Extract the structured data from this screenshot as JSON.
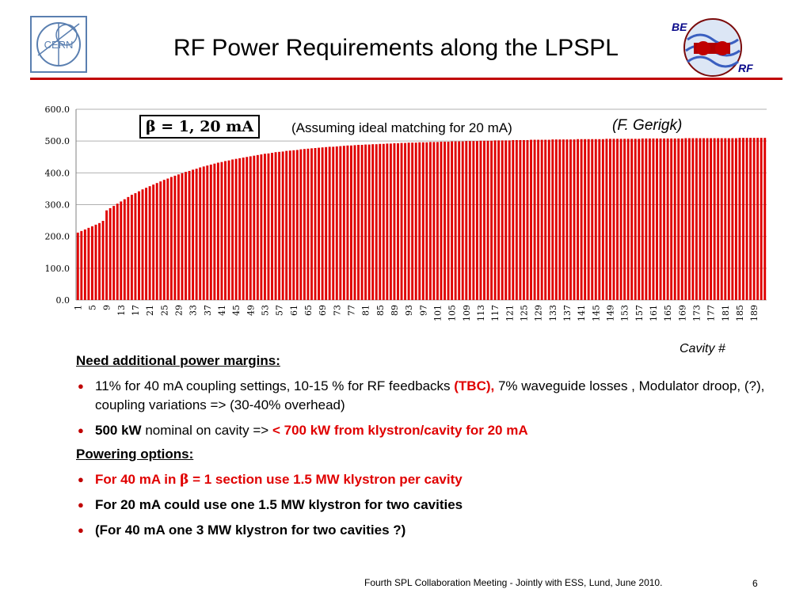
{
  "slide": {
    "title": "RF Power Requirements along the LPSPL",
    "logo_left": "CERN",
    "logo_right_top": "BE",
    "logo_right_bottom": "RF",
    "accent_color": "#c00000"
  },
  "chart_data": {
    "type": "bar",
    "color": "#e00000",
    "y_ticks": [
      "0.0",
      "100.0",
      "200.0",
      "300.0",
      "400.0",
      "500.0",
      "600.0"
    ],
    "ylim": [
      0,
      600
    ],
    "grid": true,
    "xlabel": "Cavity #",
    "x_tick_labels": [
      "1",
      "5",
      "9",
      "13",
      "17",
      "21",
      "25",
      "29",
      "33",
      "37",
      "41",
      "45",
      "49",
      "53",
      "57",
      "61",
      "65",
      "69",
      "73",
      "77",
      "81",
      "85",
      "89",
      "93",
      "97",
      "101",
      "105",
      "109",
      "113",
      "117",
      "121",
      "125",
      "129",
      "133",
      "137",
      "141",
      "145",
      "149",
      "153",
      "157",
      "161",
      "165",
      "169",
      "173",
      "177",
      "181",
      "185",
      "189"
    ],
    "categories": [
      1,
      2,
      3,
      4,
      5,
      6,
      7,
      8,
      9,
      10,
      11,
      12,
      13,
      14,
      15,
      16,
      17,
      18,
      19,
      20,
      21,
      22,
      23,
      24,
      25,
      26,
      27,
      28,
      29,
      30,
      31,
      32,
      33,
      34,
      35,
      36,
      37,
      38,
      39,
      40,
      41,
      42,
      43,
      44,
      45,
      46,
      47,
      48,
      49,
      50,
      51,
      52,
      53,
      54,
      55,
      56,
      57,
      58,
      59,
      60,
      61,
      62,
      63,
      64,
      65,
      66,
      67,
      68,
      69,
      70,
      71,
      72,
      73,
      74,
      75,
      76,
      77,
      78,
      79,
      80,
      81,
      82,
      83,
      84,
      85,
      86,
      87,
      88,
      89,
      90,
      91,
      92,
      93,
      94,
      95,
      96,
      97,
      98,
      99,
      100,
      101,
      102,
      103,
      104,
      105,
      106,
      107,
      108,
      109,
      110,
      111,
      112,
      113,
      114,
      115,
      116,
      117,
      118,
      119,
      120,
      121,
      122,
      123,
      124,
      125,
      126,
      127,
      128,
      129,
      130,
      131,
      132,
      133,
      134,
      135,
      136,
      137,
      138,
      139,
      140,
      141,
      142,
      143,
      144,
      145,
      146,
      147,
      148,
      149,
      150,
      151,
      152,
      153,
      154,
      155,
      156,
      157,
      158,
      159,
      160,
      161,
      162,
      163,
      164,
      165,
      166,
      167,
      168,
      169,
      170,
      171,
      172,
      173,
      174,
      175,
      176,
      177,
      178,
      179,
      180,
      181,
      182,
      183,
      184,
      185,
      186,
      187,
      188,
      189,
      190,
      191,
      192
    ],
    "values": [
      212,
      217,
      222,
      227,
      232,
      237,
      242,
      249,
      282,
      289,
      296,
      303,
      310,
      317,
      324,
      331,
      336,
      342,
      348,
      353,
      358,
      363,
      368,
      373,
      378,
      382,
      387,
      391,
      395,
      399,
      403,
      406,
      410,
      413,
      417,
      420,
      423,
      426,
      429,
      432,
      434,
      437,
      439,
      442,
      444,
      446,
      448,
      450,
      452,
      454,
      456,
      458,
      460,
      461,
      463,
      465,
      466,
      467,
      469,
      470,
      471,
      472,
      474,
      475,
      476,
      477,
      478,
      479,
      480,
      481,
      482,
      482,
      483,
      484,
      485,
      486,
      486,
      487,
      488,
      488,
      489,
      489,
      490,
      490,
      491,
      491,
      492,
      492,
      493,
      493,
      494,
      494,
      495,
      495,
      495,
      496,
      496,
      496,
      497,
      497,
      497,
      498,
      498,
      498,
      499,
      499,
      499,
      499,
      500,
      500,
      500,
      500,
      501,
      501,
      501,
      501,
      502,
      502,
      502,
      502,
      502,
      503,
      503,
      503,
      503,
      503,
      504,
      504,
      504,
      504,
      504,
      504,
      505,
      505,
      505,
      505,
      505,
      505,
      505,
      506,
      506,
      506,
      506,
      506,
      506,
      506,
      506,
      507,
      507,
      507,
      507,
      507,
      507,
      507,
      507,
      507,
      507,
      508,
      508,
      508,
      508,
      508,
      508,
      508,
      508,
      508,
      508,
      508,
      508,
      509,
      509,
      509,
      509,
      509,
      509,
      509,
      509,
      509,
      509,
      509,
      509,
      509,
      509,
      509,
      510,
      510,
      510,
      510,
      510,
      510,
      510,
      510
    ],
    "annotations": {
      "beta": "β = 1, 20 mA",
      "assumption": "(Assuming ideal matching for 20 mA)",
      "credit": "(F. Gerigk)"
    }
  },
  "content": {
    "heading1": "Need additional power margins:",
    "b1_a": "11% for 40 mA coupling settings, 10-15 % for RF feedbacks ",
    "b1_tbc": "(TBC),",
    "b1_b": " 7% waveguide losses , Modulator droop, (?), coupling variations    => (30-40% overhead)",
    "b2_bold": "500 kW",
    "b2_text": " nominal on cavity =>   ",
    "b2_red": "< 700 kW from klystron/cavity for 20 mA",
    "heading2": "Powering options:",
    "b3_a": " For 40 mA in ",
    "b3_beta": "β",
    "b3_b": " = 1 section use 1.5 MW klystron per cavity",
    "b4": "For 20 mA could use one 1.5 MW klystron for two cavities",
    "b5": "(For 40 mA one 3 MW klystron for two cavities ?)",
    "bullet_symbol": "●"
  },
  "footer": {
    "text": "Fourth SPL Collaboration Meeting - Jointly with ESS, Lund, June 2010.",
    "page": "6"
  }
}
